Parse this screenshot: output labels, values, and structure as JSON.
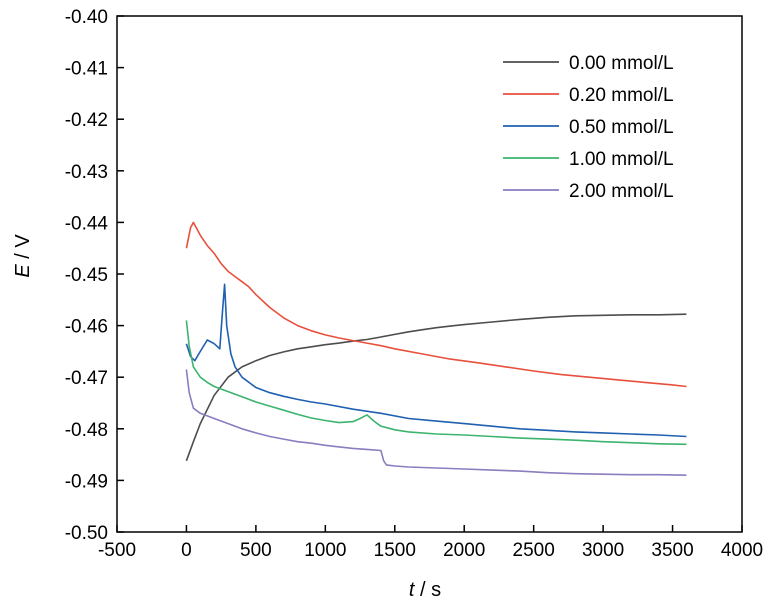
{
  "chart_data": {
    "type": "line",
    "title": "",
    "xlabel_var": "t",
    "xlabel_unit": " / s",
    "ylabel_var": "E",
    "ylabel_unit": " / V",
    "xlim": [
      -500,
      4000
    ],
    "ylim": [
      -0.5,
      -0.4
    ],
    "x_ticks": [
      -500,
      0,
      500,
      1000,
      1500,
      2000,
      2500,
      3000,
      3500,
      4000
    ],
    "x_tick_labels": [
      "-500",
      "0",
      "500",
      "1000",
      "1500",
      "2000",
      "2500",
      "3000",
      "3500",
      "4000"
    ],
    "y_ticks": [
      -0.4,
      -0.41,
      -0.42,
      -0.43,
      -0.44,
      -0.45,
      -0.46,
      -0.47,
      -0.48,
      -0.49,
      -0.5
    ],
    "y_tick_labels": [
      "-0.40",
      "-0.41",
      "-0.42",
      "-0.43",
      "-0.44",
      "-0.45",
      "-0.46",
      "-0.47",
      "-0.48",
      "-0.49",
      "-0.50"
    ],
    "grid": false,
    "legend_position": "top-right",
    "series": [
      {
        "name": "0.00 mmol/L",
        "color": "#4d4d4d",
        "x": [
          0,
          50,
          100,
          200,
          300,
          400,
          500,
          600,
          700,
          800,
          900,
          1000,
          1100,
          1200,
          1300,
          1400,
          1500,
          1600,
          1700,
          1800,
          1900,
          2000,
          2200,
          2400,
          2600,
          2800,
          3000,
          3200,
          3400,
          3600
        ],
        "y": [
          -0.4862,
          -0.4825,
          -0.479,
          -0.4735,
          -0.47,
          -0.468,
          -0.4668,
          -0.4658,
          -0.4651,
          -0.4645,
          -0.4641,
          -0.4637,
          -0.4634,
          -0.463,
          -0.4627,
          -0.4622,
          -0.4617,
          -0.4612,
          -0.4608,
          -0.4604,
          -0.4601,
          -0.4598,
          -0.4593,
          -0.4588,
          -0.4584,
          -0.4581,
          -0.458,
          -0.4579,
          -0.4579,
          -0.4578
        ]
      },
      {
        "name": "0.20 mmol/L",
        "color": "#e8503c",
        "x": [
          0,
          30,
          50,
          100,
          150,
          200,
          250,
          300,
          350,
          400,
          450,
          500,
          600,
          700,
          800,
          900,
          1000,
          1100,
          1200,
          1300,
          1400,
          1500,
          1700,
          1900,
          2100,
          2300,
          2500,
          2700,
          2900,
          3100,
          3300,
          3500,
          3600
        ],
        "y": [
          -0.445,
          -0.441,
          -0.44,
          -0.4425,
          -0.4445,
          -0.446,
          -0.448,
          -0.4495,
          -0.4505,
          -0.4515,
          -0.4525,
          -0.454,
          -0.4565,
          -0.4585,
          -0.46,
          -0.461,
          -0.4618,
          -0.4624,
          -0.4629,
          -0.4634,
          -0.4639,
          -0.4645,
          -0.4655,
          -0.4665,
          -0.4672,
          -0.468,
          -0.4688,
          -0.4695,
          -0.47,
          -0.4705,
          -0.471,
          -0.4715,
          -0.4718
        ]
      },
      {
        "name": "0.50 mmol/L",
        "color": "#2060b0",
        "x": [
          0,
          30,
          60,
          100,
          150,
          200,
          240,
          260,
          275,
          290,
          320,
          350,
          400,
          500,
          600,
          700,
          800,
          900,
          1000,
          1200,
          1400,
          1600,
          1800,
          2000,
          2200,
          2400,
          2600,
          2800,
          3000,
          3200,
          3400,
          3600
        ],
        "y": [
          -0.4635,
          -0.466,
          -0.4668,
          -0.465,
          -0.4628,
          -0.4635,
          -0.4645,
          -0.457,
          -0.452,
          -0.46,
          -0.4655,
          -0.468,
          -0.47,
          -0.472,
          -0.473,
          -0.4737,
          -0.4743,
          -0.4748,
          -0.4752,
          -0.4762,
          -0.477,
          -0.478,
          -0.4785,
          -0.479,
          -0.4795,
          -0.48,
          -0.4803,
          -0.4806,
          -0.4808,
          -0.481,
          -0.4812,
          -0.4815
        ]
      },
      {
        "name": "1.00 mmol/L",
        "color": "#3cb46e",
        "x": [
          0,
          20,
          50,
          100,
          150,
          200,
          300,
          400,
          500,
          600,
          700,
          800,
          900,
          1000,
          1100,
          1200,
          1250,
          1300,
          1350,
          1400,
          1500,
          1600,
          1800,
          2000,
          2200,
          2400,
          2600,
          2800,
          3000,
          3200,
          3400,
          3600
        ],
        "y": [
          -0.459,
          -0.464,
          -0.468,
          -0.47,
          -0.471,
          -0.4718,
          -0.4728,
          -0.4738,
          -0.4748,
          -0.4756,
          -0.4764,
          -0.4772,
          -0.4779,
          -0.4784,
          -0.4788,
          -0.4786,
          -0.478,
          -0.4773,
          -0.4785,
          -0.4795,
          -0.4802,
          -0.4806,
          -0.481,
          -0.4812,
          -0.4815,
          -0.4818,
          -0.482,
          -0.4822,
          -0.4825,
          -0.4827,
          -0.4829,
          -0.483
        ]
      },
      {
        "name": "2.00 mmol/L",
        "color": "#8c7cc0",
        "x": [
          0,
          20,
          50,
          100,
          150,
          200,
          300,
          400,
          500,
          600,
          700,
          800,
          900,
          1000,
          1100,
          1200,
          1300,
          1400,
          1420,
          1440,
          1500,
          1600,
          1800,
          2000,
          2200,
          2400,
          2600,
          2800,
          3000,
          3200,
          3400,
          3600
        ],
        "y": [
          -0.4685,
          -0.473,
          -0.476,
          -0.477,
          -0.4775,
          -0.478,
          -0.479,
          -0.48,
          -0.4808,
          -0.4815,
          -0.482,
          -0.4825,
          -0.4828,
          -0.4832,
          -0.4835,
          -0.4838,
          -0.484,
          -0.4842,
          -0.4862,
          -0.487,
          -0.4872,
          -0.4874,
          -0.4876,
          -0.4878,
          -0.488,
          -0.4882,
          -0.4885,
          -0.4887,
          -0.4888,
          -0.4889,
          -0.4889,
          -0.489
        ]
      }
    ]
  }
}
